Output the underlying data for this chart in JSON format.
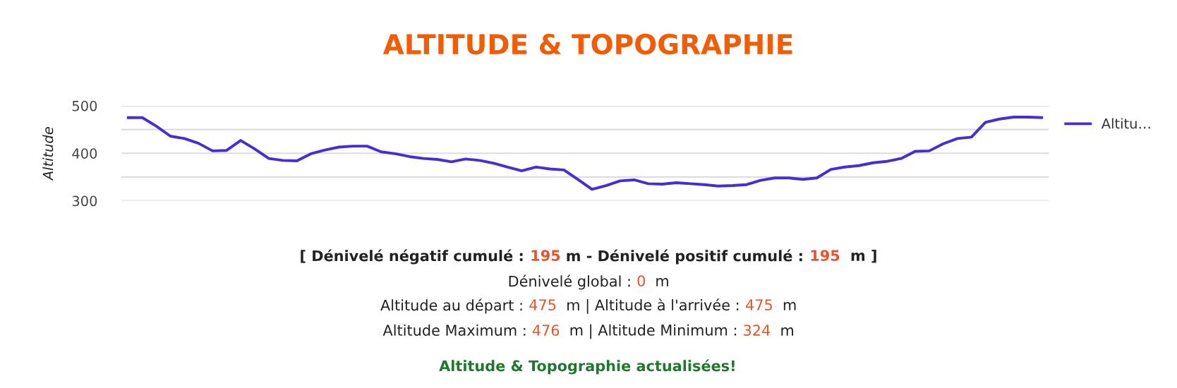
{
  "chart_data": {
    "type": "line",
    "title": "ALTITUDE & TOPOGRAPHIE",
    "ylabel": "Altitude",
    "categories": [
      null,
      null,
      null,
      null,
      null,
      null,
      null,
      null,
      null,
      null,
      null,
      null,
      null,
      null,
      null,
      null,
      null,
      null,
      null,
      null,
      null,
      null,
      null,
      null,
      null,
      null,
      null,
      null,
      null,
      null,
      null,
      null,
      null,
      null,
      null,
      null,
      null,
      null,
      null,
      null,
      null,
      null,
      null,
      null,
      null,
      null,
      null,
      null,
      null,
      null,
      null,
      null,
      null,
      null,
      null,
      null,
      null,
      null,
      null,
      null,
      null,
      null,
      null,
      null,
      null,
      null
    ],
    "series": [
      {
        "name": "Altitu…",
        "color": "#4a2bd8",
        "values": [
          475,
          475,
          457,
          436,
          431,
          421,
          405,
          406,
          427,
          409,
          389,
          385,
          384,
          399,
          407,
          413,
          415,
          415,
          403,
          399,
          393,
          389,
          387,
          382,
          388,
          385,
          379,
          371,
          363,
          371,
          367,
          365,
          345,
          324,
          332,
          342,
          344,
          336,
          335,
          338,
          336,
          334,
          331,
          332,
          334,
          343,
          348,
          348,
          345,
          348,
          366,
          371,
          374,
          380,
          383,
          389,
          404,
          405,
          420,
          431,
          434,
          465,
          472,
          476,
          476,
          475
        ]
      }
    ],
    "ylim": [
      300,
      500
    ],
    "yticks": [
      300,
      {
        "value": 350,
        "label": null
      },
      400,
      {
        "value": 450,
        "label": null
      },
      500
    ],
    "grid": "y",
    "legend": "top right",
    "marker": "none",
    "line_style": "solid",
    "annotations": [
      "[ Dénivelé négatif cumulé : 195 m - Dénivelé positif cumulé : 195  m ]",
      "Dénivelé global : 0  m",
      "Altitude au départ : 475  m | Altitude à l'arrivée : 475  m",
      "Altitude Maximum : 476  m | Altitude Minimum : 324  m",
      "Altitude & Topographie actualisées!"
    ]
  }
}
